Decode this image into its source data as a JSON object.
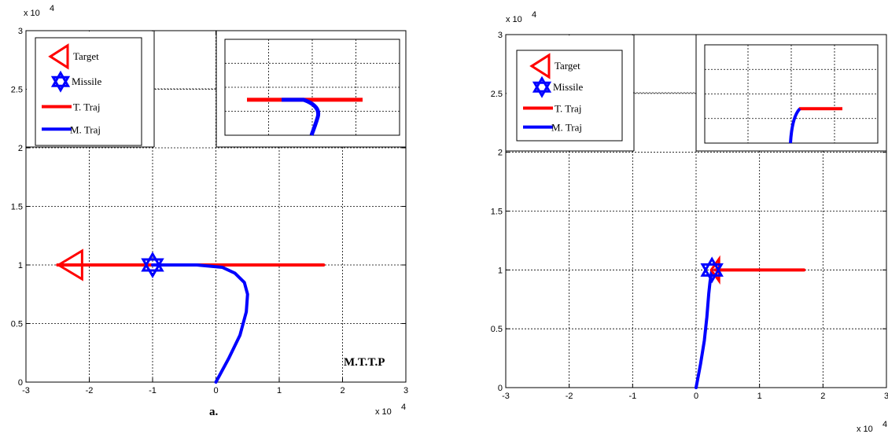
{
  "chart_data": [
    {
      "type": "line",
      "panel": "left",
      "title": "",
      "xlabel": "",
      "ylabel": "",
      "x_exponent": "x 10",
      "x_exponent_power": "4",
      "y_exponent": "x 10",
      "y_exponent_power": "4",
      "xlim": [
        -3,
        3
      ],
      "ylim": [
        0,
        3
      ],
      "xticks": [
        "-3",
        "-2",
        "-1",
        "0",
        "1",
        "2",
        "3"
      ],
      "yticks": [
        "0",
        "0.5",
        "1",
        "1.5",
        "2",
        "2.5",
        "3"
      ],
      "grid": true,
      "legend_position": "top-left",
      "legend": [
        "Target",
        "Missile",
        "T. Traj",
        "M. Traj"
      ],
      "annotations": [
        "M.T.T.P",
        "a."
      ],
      "series": [
        {
          "name": "T. Traj",
          "color": "#ff0000",
          "x": [
            -2.5,
            1.7
          ],
          "y": [
            1.0,
            1.0
          ]
        },
        {
          "name": "M. Traj",
          "color": "#0000ff",
          "x": [
            0.0,
            0.2,
            0.38,
            0.48,
            0.5,
            0.45,
            0.3,
            0.1,
            -0.3,
            -1.0
          ],
          "y": [
            0.0,
            0.2,
            0.4,
            0.6,
            0.75,
            0.85,
            0.93,
            0.98,
            1.0,
            1.0
          ]
        }
      ],
      "markers": [
        {
          "name": "Target",
          "shape": "triangle-left",
          "color": "#ff0000",
          "x": -2.3,
          "y": 1.0
        },
        {
          "name": "Missile",
          "shape": "star-of-david",
          "color": "#0000ff",
          "x": -1.0,
          "y": 1.0
        }
      ],
      "inset": {
        "xlim": [
          -3,
          3
        ],
        "ylim": [
          0,
          3
        ],
        "grid": true
      }
    },
    {
      "type": "line",
      "panel": "right",
      "title": "",
      "xlabel": "",
      "ylabel": "",
      "x_exponent": "x 10",
      "x_exponent_power": "4",
      "y_exponent": "x 10",
      "y_exponent_power": "4",
      "xlim": [
        -3,
        3
      ],
      "ylim": [
        0,
        3
      ],
      "xticks": [
        "-3",
        "-2",
        "-1",
        "0",
        "1",
        "2",
        "3"
      ],
      "yticks": [
        "0",
        "0.5",
        "1",
        "1.5",
        "2",
        "2.5",
        "3"
      ],
      "grid": true,
      "legend_position": "top-left",
      "legend": [
        "Target",
        "Missile",
        "T. Traj",
        "M. Traj"
      ],
      "series": [
        {
          "name": "T. Traj",
          "color": "#ff0000",
          "x": [
            0.3,
            1.7
          ],
          "y": [
            1.0,
            1.0
          ]
        },
        {
          "name": "M. Traj",
          "color": "#0000ff",
          "x": [
            0.0,
            0.07,
            0.13,
            0.17,
            0.2,
            0.22,
            0.25
          ],
          "y": [
            0.0,
            0.2,
            0.4,
            0.6,
            0.8,
            0.9,
            1.0
          ]
        }
      ],
      "markers": [
        {
          "name": "Target",
          "shape": "triangle-left",
          "color": "#ff0000",
          "x": 0.3,
          "y": 1.0
        },
        {
          "name": "Missile",
          "shape": "star-of-david",
          "color": "#0000ff",
          "x": 0.25,
          "y": 1.0
        }
      ],
      "inset": {
        "xlim": [
          -3,
          3
        ],
        "ylim": [
          0,
          3
        ],
        "grid": true
      }
    }
  ]
}
